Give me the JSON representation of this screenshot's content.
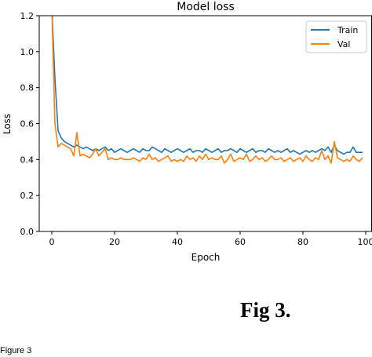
{
  "chart_data": {
    "type": "line",
    "title": "Model loss",
    "xlabel": "Epoch",
    "ylabel": "Loss",
    "xlim": [
      -4,
      102
    ],
    "ylim": [
      0.0,
      1.2
    ],
    "xticks": [
      0,
      20,
      40,
      60,
      80,
      100
    ],
    "yticks": [
      0.0,
      0.2,
      0.4,
      0.6,
      0.8,
      1.0,
      1.2
    ],
    "xtick_labels": [
      "0",
      "20",
      "40",
      "60",
      "80",
      "100"
    ],
    "ytick_labels": [
      "0.0",
      "0.2",
      "0.4",
      "0.6",
      "0.8",
      "1.0",
      "1.2"
    ],
    "grid": false,
    "legend": "top-right",
    "series": [
      {
        "name": "Train",
        "color": "#1f77b4",
        "x": [
          0,
          1,
          2,
          3,
          4,
          5,
          6,
          7,
          8,
          9,
          10,
          11,
          12,
          13,
          14,
          15,
          16,
          17,
          18,
          19,
          20,
          21,
          22,
          23,
          24,
          25,
          26,
          27,
          28,
          29,
          30,
          31,
          32,
          33,
          34,
          35,
          36,
          37,
          38,
          39,
          40,
          41,
          42,
          43,
          44,
          45,
          46,
          47,
          48,
          49,
          50,
          51,
          52,
          53,
          54,
          55,
          56,
          57,
          58,
          59,
          60,
          61,
          62,
          63,
          64,
          65,
          66,
          67,
          68,
          69,
          70,
          71,
          72,
          73,
          74,
          75,
          76,
          77,
          78,
          79,
          80,
          81,
          82,
          83,
          84,
          85,
          86,
          87,
          88,
          89,
          90,
          91,
          92,
          93,
          94,
          95,
          96,
          97,
          98,
          99
        ],
        "values": [
          1.25,
          0.85,
          0.56,
          0.52,
          0.5,
          0.49,
          0.48,
          0.47,
          0.48,
          0.47,
          0.46,
          0.47,
          0.46,
          0.45,
          0.46,
          0.45,
          0.46,
          0.47,
          0.45,
          0.46,
          0.44,
          0.45,
          0.46,
          0.45,
          0.44,
          0.45,
          0.46,
          0.45,
          0.44,
          0.46,
          0.45,
          0.45,
          0.47,
          0.46,
          0.45,
          0.44,
          0.46,
          0.45,
          0.44,
          0.45,
          0.46,
          0.45,
          0.44,
          0.45,
          0.46,
          0.44,
          0.45,
          0.45,
          0.44,
          0.46,
          0.45,
          0.44,
          0.45,
          0.46,
          0.44,
          0.45,
          0.45,
          0.46,
          0.45,
          0.44,
          0.46,
          0.45,
          0.44,
          0.45,
          0.46,
          0.44,
          0.45,
          0.45,
          0.44,
          0.46,
          0.45,
          0.44,
          0.45,
          0.44,
          0.45,
          0.46,
          0.44,
          0.45,
          0.44,
          0.43,
          0.44,
          0.45,
          0.44,
          0.45,
          0.44,
          0.45,
          0.46,
          0.45,
          0.47,
          0.44,
          0.48,
          0.45,
          0.44,
          0.43,
          0.44,
          0.44,
          0.47,
          0.44,
          0.44,
          0.44
        ]
      },
      {
        "name": "Val",
        "color": "#ff7f0e",
        "x": [
          0,
          1,
          2,
          3,
          4,
          5,
          6,
          7,
          8,
          9,
          10,
          11,
          12,
          13,
          14,
          15,
          16,
          17,
          18,
          19,
          20,
          21,
          22,
          23,
          24,
          25,
          26,
          27,
          28,
          29,
          30,
          31,
          32,
          33,
          34,
          35,
          36,
          37,
          38,
          39,
          40,
          41,
          42,
          43,
          44,
          45,
          46,
          47,
          48,
          49,
          50,
          51,
          52,
          53,
          54,
          55,
          56,
          57,
          58,
          59,
          60,
          61,
          62,
          63,
          64,
          65,
          66,
          67,
          68,
          69,
          70,
          71,
          72,
          73,
          74,
          75,
          76,
          77,
          78,
          79,
          80,
          81,
          82,
          83,
          84,
          85,
          86,
          87,
          88,
          89,
          90,
          91,
          92,
          93,
          94,
          95,
          96,
          97,
          98,
          99
        ],
        "values": [
          1.25,
          0.6,
          0.47,
          0.49,
          0.48,
          0.47,
          0.46,
          0.42,
          0.55,
          0.42,
          0.43,
          0.42,
          0.41,
          0.43,
          0.46,
          0.42,
          0.44,
          0.46,
          0.4,
          0.41,
          0.4,
          0.4,
          0.41,
          0.4,
          0.4,
          0.4,
          0.41,
          0.4,
          0.39,
          0.41,
          0.4,
          0.43,
          0.4,
          0.41,
          0.39,
          0.4,
          0.41,
          0.42,
          0.39,
          0.4,
          0.39,
          0.4,
          0.39,
          0.42,
          0.4,
          0.41,
          0.39,
          0.42,
          0.4,
          0.43,
          0.4,
          0.41,
          0.4,
          0.4,
          0.42,
          0.38,
          0.4,
          0.43,
          0.39,
          0.4,
          0.41,
          0.4,
          0.43,
          0.39,
          0.4,
          0.42,
          0.4,
          0.41,
          0.39,
          0.4,
          0.42,
          0.4,
          0.4,
          0.41,
          0.39,
          0.4,
          0.41,
          0.39,
          0.4,
          0.41,
          0.39,
          0.42,
          0.4,
          0.39,
          0.41,
          0.4,
          0.45,
          0.4,
          0.42,
          0.38,
          0.5,
          0.41,
          0.4,
          0.39,
          0.4,
          0.39,
          0.42,
          0.4,
          0.39,
          0.41
        ]
      }
    ]
  },
  "caption": "Fig 3.",
  "figure_label": "Figure 3"
}
